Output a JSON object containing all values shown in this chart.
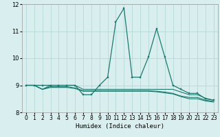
{
  "xlabel": "Humidex (Indice chaleur)",
  "xlim": [
    -0.5,
    23.5
  ],
  "ylim": [
    8,
    12
  ],
  "yticks": [
    8,
    9,
    10,
    11,
    12
  ],
  "xticks": [
    0,
    1,
    2,
    3,
    4,
    5,
    6,
    7,
    8,
    9,
    10,
    11,
    12,
    13,
    14,
    15,
    16,
    17,
    18,
    19,
    20,
    21,
    22,
    23
  ],
  "background_color": "#d9eeee",
  "grid_color": "#aed4d4",
  "line_color": "#1a7a6e",
  "line1_x": [
    0,
    1,
    2,
    3,
    4,
    5,
    6,
    7,
    8,
    9,
    10,
    11,
    12,
    13,
    14,
    15,
    16,
    17,
    18,
    19,
    20,
    21,
    22,
    23
  ],
  "line1_y": [
    9.0,
    9.0,
    9.0,
    9.0,
    9.0,
    9.0,
    9.0,
    8.65,
    8.65,
    9.0,
    9.3,
    11.35,
    11.85,
    9.3,
    9.3,
    10.05,
    11.1,
    10.05,
    9.0,
    8.85,
    8.7,
    8.7,
    8.5,
    8.45
  ],
  "line2_y": [
    9.0,
    9.0,
    8.85,
    9.0,
    9.0,
    9.0,
    9.0,
    8.85,
    8.85,
    8.85,
    8.85,
    8.85,
    8.85,
    8.85,
    8.85,
    8.85,
    8.85,
    8.85,
    8.85,
    8.75,
    8.65,
    8.65,
    8.52,
    8.45
  ],
  "line3_y": [
    9.0,
    9.0,
    8.85,
    8.95,
    8.95,
    8.95,
    8.9,
    8.8,
    8.8,
    8.8,
    8.8,
    8.8,
    8.8,
    8.8,
    8.8,
    8.8,
    8.78,
    8.75,
    8.7,
    8.6,
    8.55,
    8.55,
    8.45,
    8.4
  ],
  "line4_y": [
    9.0,
    9.0,
    8.85,
    8.92,
    8.92,
    8.92,
    8.88,
    8.78,
    8.78,
    8.78,
    8.78,
    8.78,
    8.78,
    8.78,
    8.78,
    8.78,
    8.76,
    8.72,
    8.68,
    8.58,
    8.5,
    8.5,
    8.42,
    8.38
  ]
}
